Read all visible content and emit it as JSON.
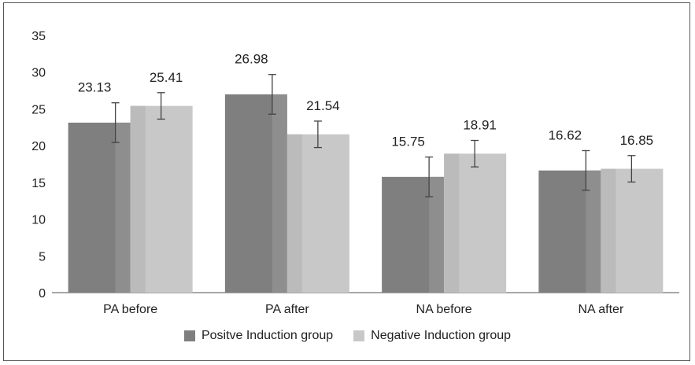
{
  "chart_data": {
    "type": "bar",
    "categories": [
      "PA before",
      "PA after",
      "NA before",
      "NA after"
    ],
    "series": [
      {
        "name": "Positve Induction group",
        "values": [
          23.13,
          26.98,
          15.75,
          16.62
        ],
        "error": [
          2.7,
          2.7,
          2.7,
          2.7
        ],
        "labels": [
          "23.13",
          "26.98",
          "15.75",
          "16.62"
        ],
        "color": "#7f7f7f",
        "edge_color": "#9a9a9a"
      },
      {
        "name": "Negative Induction group",
        "values": [
          25.41,
          21.54,
          18.91,
          16.85
        ],
        "error": [
          1.8,
          1.8,
          1.8,
          1.8
        ],
        "labels": [
          "25.41",
          "21.54",
          "18.91",
          "16.85"
        ],
        "color": "#c8c8c8",
        "edge_color": "#b0b0b0"
      }
    ],
    "ylim": [
      0,
      35
    ],
    "yticks": [
      "0",
      "5",
      "10",
      "15",
      "20",
      "25",
      "30",
      "35"
    ],
    "grid": false,
    "legend_position": "bottom"
  }
}
